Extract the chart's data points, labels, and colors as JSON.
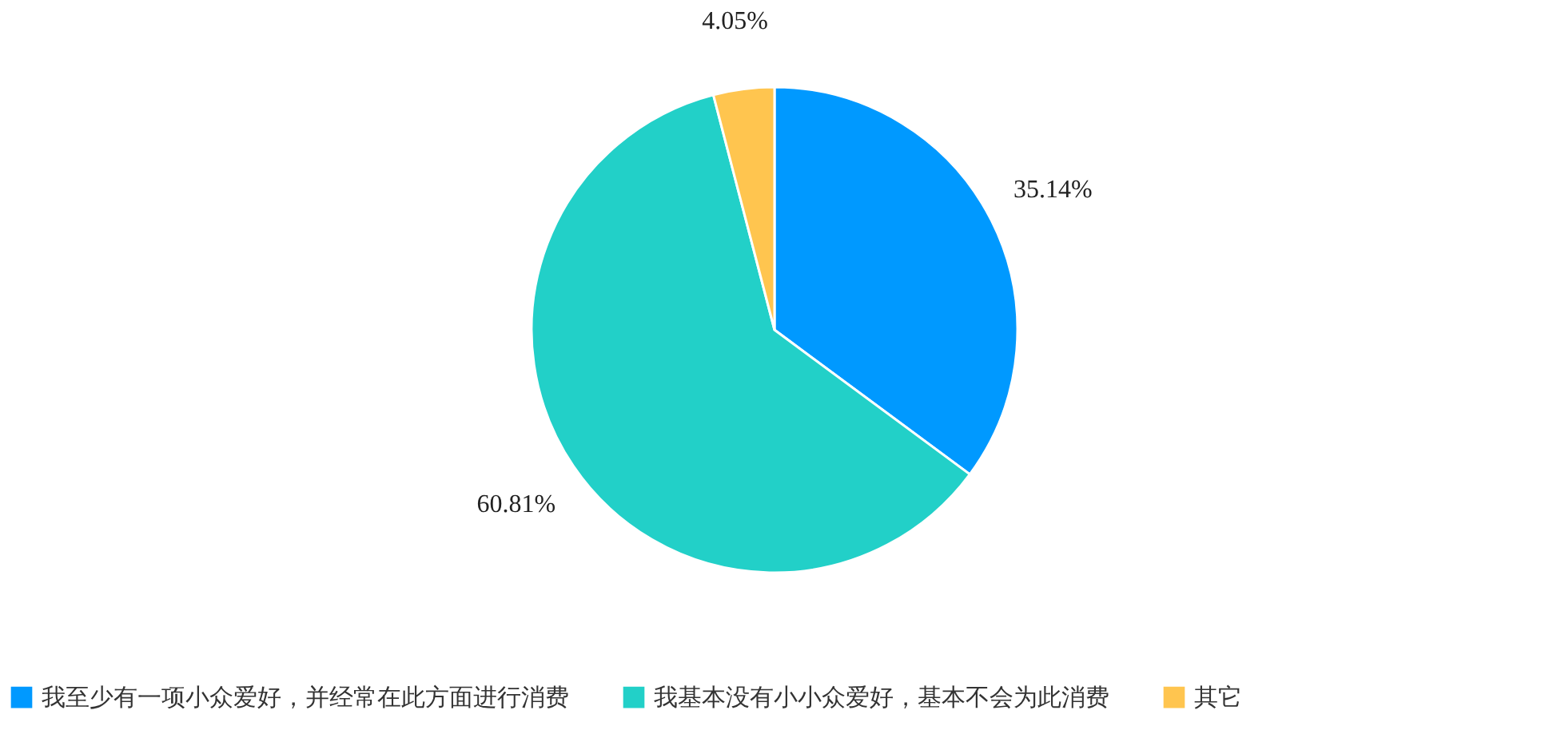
{
  "chart_data": {
    "type": "pie",
    "categories": [
      "我至少有一项小众爱好，并经常在此方面进行消费",
      "我基本没有小小众爱好，基本不会为此消费",
      "其它"
    ],
    "values": [
      35.14,
      60.81,
      4.05
    ],
    "colors": [
      "#0099ff",
      "#22d0c8",
      "#ffc54f"
    ],
    "value_labels": [
      "35.14%",
      "60.81%",
      "4.05%"
    ],
    "legend": "bottom"
  }
}
